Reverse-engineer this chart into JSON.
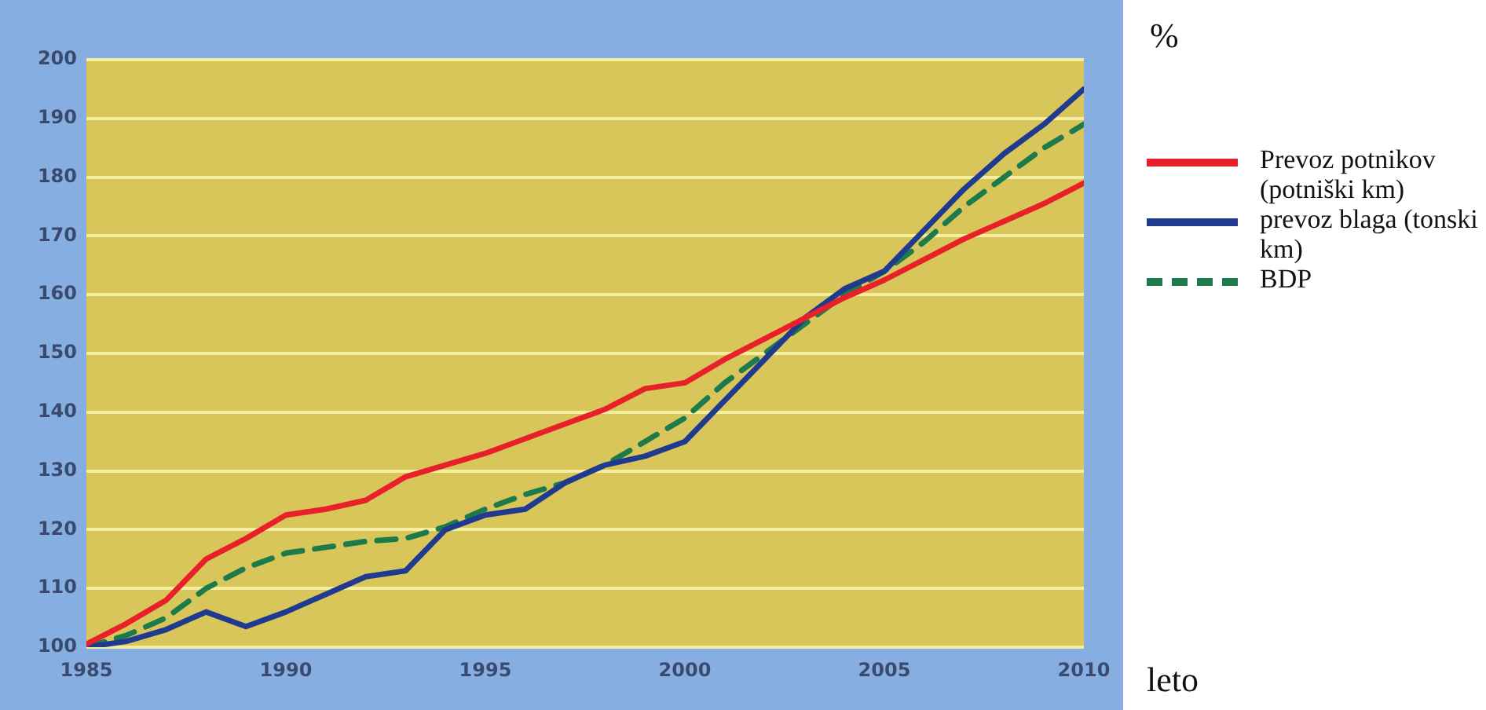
{
  "chart_data": {
    "type": "line",
    "ylabel": "%",
    "xlabel": "leto",
    "x": [
      1985,
      1986,
      1987,
      1988,
      1989,
      1990,
      1991,
      1992,
      1993,
      1994,
      1995,
      1996,
      1997,
      1998,
      1999,
      2000,
      2001,
      2002,
      2003,
      2004,
      2005,
      2006,
      2007,
      2008,
      2009,
      2010
    ],
    "series": [
      {
        "name": "Prevoz potnikov (potniški km)",
        "color": "#e8202a",
        "values": [
          100.5,
          104,
          108,
          115,
          118.5,
          122.5,
          123.5,
          125,
          129,
          131,
          133,
          135.5,
          138,
          140.5,
          144,
          145,
          149,
          152.5,
          156,
          159.5,
          162.5,
          166,
          169.5,
          172.5,
          175.5,
          179
        ]
      },
      {
        "name": "prevoz blaga (tonski km)",
        "color": "#1f3a8f",
        "values": [
          100,
          101,
          103,
          106,
          103.5,
          106,
          109,
          112,
          113,
          120,
          122.5,
          123.5,
          128,
          131,
          132.5,
          135,
          142,
          149,
          156,
          161,
          164,
          171,
          178,
          184,
          189,
          195
        ]
      },
      {
        "name": "BDP",
        "color": "#1d7a4a",
        "line_style": "dashed",
        "values": [
          100,
          102,
          105,
          110,
          113.5,
          116,
          117,
          118,
          118.5,
          120.5,
          123.5,
          126,
          128,
          131,
          135,
          139,
          145,
          150,
          155,
          160,
          164,
          169,
          175,
          180,
          185,
          189
        ]
      }
    ],
    "xlim": [
      1985,
      2010
    ],
    "xticks": [
      1985,
      1990,
      1995,
      2000,
      2005,
      2010
    ],
    "ylim": [
      100,
      200
    ],
    "yticks": [
      100,
      110,
      120,
      130,
      140,
      150,
      160,
      170,
      180,
      190,
      200
    ],
    "grid": "y",
    "legend": "right",
    "marker": "none"
  }
}
